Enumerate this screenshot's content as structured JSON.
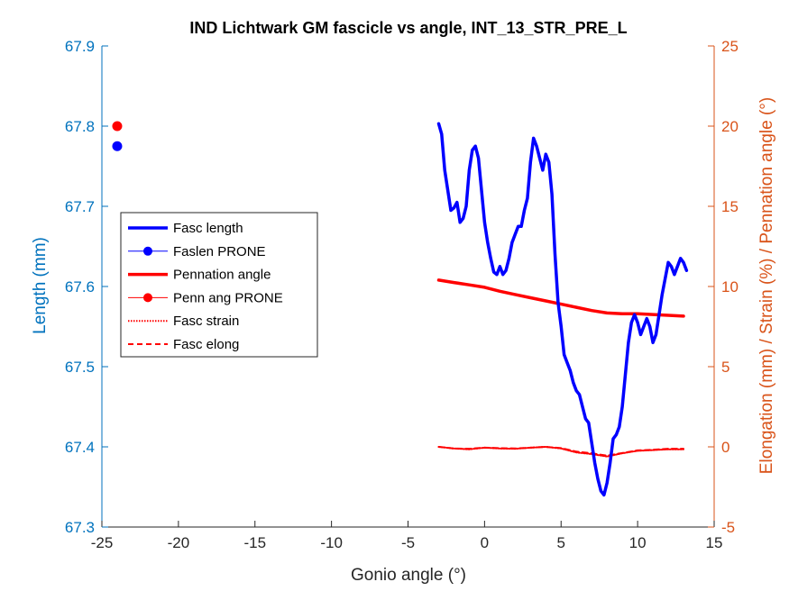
{
  "colors": {
    "left_axis": "#0072bd",
    "right_axis": "#d95319",
    "fasc_length": "#0000ff",
    "pennation": "#ff0000",
    "black": "#000000"
  },
  "chart_data": {
    "type": "line",
    "title": "IND Lichtwark GM fascicle vs angle, INT_13_STR_PRE_L",
    "xlabel": "Gonio angle (°)",
    "ylabel_left": "Length (mm)",
    "ylabel_right": "Elongation (mm) / Strain (%) / Pennation angle (°)",
    "xlim": [
      -25,
      15
    ],
    "ylim_left": [
      67.3,
      67.9
    ],
    "ylim_right": [
      -5,
      25
    ],
    "x_ticks": [
      -25,
      -20,
      -15,
      -10,
      -5,
      0,
      5,
      10,
      15
    ],
    "x_tick_labels": [
      "-25",
      "-20",
      "-15",
      "-10",
      "-5",
      "0",
      "5",
      "10",
      "15"
    ],
    "y_left_ticks": [
      67.3,
      67.4,
      67.5,
      67.6,
      67.7,
      67.8,
      67.9
    ],
    "y_left_tick_labels": [
      "67.3",
      "67.4",
      "67.5",
      "67.6",
      "67.7",
      "67.8",
      "67.9"
    ],
    "y_right_ticks": [
      -5,
      0,
      5,
      10,
      15,
      20,
      25
    ],
    "y_right_tick_labels": [
      "-5",
      "0",
      "5",
      "10",
      "15",
      "20",
      "25"
    ],
    "grid": false,
    "legend_placement": "middle-left",
    "series": [
      {
        "name": "Fasc length",
        "axis": "left",
        "style": "solid-thick",
        "color": "#0000ff",
        "x": [
          -3.0,
          -2.8,
          -2.6,
          -2.4,
          -2.2,
          -2.0,
          -1.8,
          -1.6,
          -1.4,
          -1.2,
          -1.0,
          -0.8,
          -0.6,
          -0.4,
          -0.2,
          0.0,
          0.2,
          0.4,
          0.6,
          0.8,
          1.0,
          1.2,
          1.4,
          1.6,
          1.8,
          2.0,
          2.2,
          2.4,
          2.6,
          2.8,
          3.0,
          3.2,
          3.4,
          3.6,
          3.8,
          4.0,
          4.2,
          4.4,
          4.6,
          4.8,
          5.0,
          5.2,
          5.4,
          5.6,
          5.8,
          6.0,
          6.2,
          6.4,
          6.6,
          6.8,
          7.0,
          7.2,
          7.4,
          7.6,
          7.8,
          8.0,
          8.2,
          8.4,
          8.6,
          8.8,
          9.0,
          9.2,
          9.4,
          9.6,
          9.8,
          10.0,
          10.2,
          10.4,
          10.6,
          10.8,
          11.0,
          11.2,
          11.4,
          11.6,
          11.8,
          12.0,
          12.2,
          12.4,
          12.6,
          12.8,
          13.0,
          13.2
        ],
        "values": [
          67.803,
          67.79,
          67.745,
          67.72,
          67.695,
          67.698,
          67.705,
          67.68,
          67.685,
          67.7,
          67.745,
          67.77,
          67.775,
          67.76,
          67.72,
          67.68,
          67.655,
          67.635,
          67.618,
          67.615,
          67.625,
          67.615,
          67.62,
          67.635,
          67.655,
          67.665,
          67.675,
          67.675,
          67.695,
          67.71,
          67.755,
          67.785,
          67.775,
          67.76,
          67.745,
          67.765,
          67.755,
          67.715,
          67.64,
          67.58,
          67.55,
          67.515,
          67.505,
          67.495,
          67.48,
          67.47,
          67.465,
          67.45,
          67.435,
          67.43,
          67.405,
          67.38,
          67.36,
          67.345,
          67.34,
          67.355,
          67.38,
          67.41,
          67.415,
          67.425,
          67.45,
          67.49,
          67.53,
          67.555,
          67.565,
          67.555,
          67.54,
          67.55,
          67.56,
          67.55,
          67.53,
          67.54,
          67.565,
          67.59,
          67.61,
          67.63,
          67.625,
          67.615,
          67.625,
          67.635,
          67.63,
          67.62
        ]
      },
      {
        "name": "Faslen PRONE",
        "axis": "left",
        "style": "marker-line",
        "color": "#0000ff",
        "x": [
          -24
        ],
        "values": [
          67.775
        ]
      },
      {
        "name": "Pennation angle",
        "axis": "right",
        "style": "solid-thick",
        "color": "#ff0000",
        "x": [
          -3.0,
          -2.0,
          -1.0,
          0.0,
          1.0,
          2.0,
          3.0,
          4.0,
          5.0,
          6.0,
          7.0,
          8.0,
          9.0,
          10.0,
          11.0,
          12.0,
          13.0
        ],
        "values": [
          10.4,
          10.25,
          10.1,
          9.95,
          9.7,
          9.5,
          9.3,
          9.1,
          8.9,
          8.7,
          8.5,
          8.35,
          8.3,
          8.3,
          8.25,
          8.2,
          8.15
        ]
      },
      {
        "name": "Penn ang PRONE",
        "axis": "right",
        "style": "marker-line",
        "color": "#ff0000",
        "x": [
          -24
        ],
        "values": [
          20
        ]
      },
      {
        "name": "Fasc strain",
        "axis": "right",
        "style": "dotted",
        "color": "#ff0000",
        "x": [
          -3.0,
          -2.0,
          -1.0,
          0.0,
          1.0,
          2.0,
          3.0,
          4.0,
          5.0,
          6.0,
          7.0,
          8.0,
          9.0,
          10.0,
          11.0,
          12.0,
          13.0
        ],
        "values": [
          0.0,
          -0.1,
          -0.15,
          -0.05,
          -0.1,
          -0.12,
          -0.05,
          0.0,
          -0.1,
          -0.35,
          -0.45,
          -0.6,
          -0.4,
          -0.25,
          -0.2,
          -0.15,
          -0.15
        ]
      },
      {
        "name": "Fasc elong",
        "axis": "right",
        "style": "dashed",
        "color": "#ff0000",
        "x": [
          -3.0,
          -2.0,
          -1.0,
          0.0,
          1.0,
          2.0,
          3.0,
          4.0,
          5.0,
          6.0,
          7.0,
          8.0,
          9.0,
          10.0,
          11.0,
          12.0,
          13.0
        ],
        "values": [
          0.0,
          -0.1,
          -0.12,
          -0.05,
          -0.08,
          -0.1,
          -0.05,
          0.0,
          -0.08,
          -0.3,
          -0.4,
          -0.55,
          -0.38,
          -0.22,
          -0.18,
          -0.12,
          -0.12
        ]
      }
    ]
  }
}
